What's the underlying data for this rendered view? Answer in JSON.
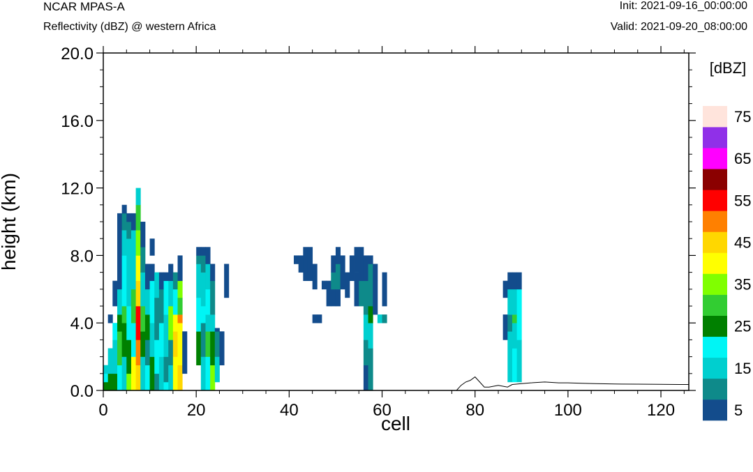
{
  "header": {
    "model": "NCAR MPAS-A",
    "title": "Reflectivity (dBZ) @ western Africa",
    "init": "Init: 2021-09-16_00:00:00",
    "valid": "Valid: 2021-09-20_08:00:00"
  },
  "chart_data": {
    "type": "heatmap",
    "title": "Reflectivity (dBZ) @ western Africa",
    "xlabel": "cell",
    "ylabel": "height (km)",
    "xlim": [
      0,
      126
    ],
    "ylim": [
      0,
      20
    ],
    "xticks": [
      "0",
      "20",
      "40",
      "60",
      "80",
      "100",
      "120"
    ],
    "yticks": [
      "0.0",
      "4.0",
      "8.0",
      "12.0",
      "16.0",
      "20.0"
    ],
    "cell_width": 1,
    "layer_height": 0.5,
    "colorbar": {
      "label": "[dBZ]",
      "levels": [
        0,
        10,
        15,
        20,
        25,
        30,
        35,
        40,
        45,
        50,
        55,
        60,
        65,
        70,
        75
      ],
      "tick_labels": [
        "5",
        "15",
        "25",
        "35",
        "45",
        "55",
        "65",
        "75"
      ],
      "colors": [
        "#134c8c",
        "#0e8a8a",
        "#00cfcf",
        "#00f5f5",
        "#008000",
        "#32cd32",
        "#80ff00",
        "#ffff00",
        "#ffd700",
        "#ff8000",
        "#ff0000",
        "#8b0000",
        "#ff00ff",
        "#9030e8",
        "#ffe4dc"
      ]
    },
    "columns": [
      {
        "x": 0,
        "runs": [
          [
            0,
            0.5,
            25
          ],
          [
            0.5,
            1.0,
            20
          ],
          [
            1.0,
            1.5,
            15
          ]
        ]
      },
      {
        "x": 1,
        "runs": [
          [
            0,
            1.0,
            25
          ],
          [
            1.0,
            2.5,
            15
          ],
          [
            4.0,
            4.5,
            5
          ]
        ]
      },
      {
        "x": 2,
        "runs": [
          [
            0,
            1.0,
            25
          ],
          [
            1.0,
            3.0,
            15
          ],
          [
            3.0,
            4.0,
            20
          ],
          [
            5.0,
            6.5,
            5
          ]
        ]
      },
      {
        "x": 3,
        "runs": [
          [
            0,
            1.5,
            20
          ],
          [
            1.5,
            3.5,
            30
          ],
          [
            3.5,
            4.5,
            25
          ],
          [
            4.5,
            6.0,
            15
          ],
          [
            6.0,
            10.5,
            5
          ]
        ]
      },
      {
        "x": 4,
        "runs": [
          [
            0,
            2.0,
            15
          ],
          [
            2.0,
            4.0,
            25
          ],
          [
            4.0,
            5.0,
            30
          ],
          [
            5.0,
            8.0,
            20
          ],
          [
            8.0,
            9.5,
            15
          ],
          [
            9.5,
            10.5,
            10
          ],
          [
            10.5,
            11.0,
            5
          ]
        ]
      },
      {
        "x": 5,
        "runs": [
          [
            0,
            1.0,
            35
          ],
          [
            1.0,
            3.0,
            25
          ],
          [
            3.0,
            5.0,
            20
          ],
          [
            5.0,
            9.0,
            15
          ],
          [
            9.0,
            10.0,
            10
          ],
          [
            10.0,
            10.5,
            5
          ]
        ]
      },
      {
        "x": 6,
        "runs": [
          [
            0,
            2.0,
            40
          ],
          [
            2.0,
            4.0,
            20
          ],
          [
            4.0,
            6.0,
            30
          ],
          [
            6.0,
            9.5,
            15
          ],
          [
            9.5,
            10.5,
            5
          ]
        ]
      },
      {
        "x": 7,
        "runs": [
          [
            0,
            1.5,
            45
          ],
          [
            1.5,
            3.0,
            50
          ],
          [
            3.0,
            5.0,
            55
          ],
          [
            5.0,
            6.5,
            45
          ],
          [
            6.5,
            8.0,
            40
          ],
          [
            8.0,
            9.5,
            35
          ],
          [
            9.5,
            11.0,
            30
          ],
          [
            11.0,
            12.0,
            15
          ]
        ]
      },
      {
        "x": 8,
        "runs": [
          [
            0,
            2.0,
            15
          ],
          [
            2.0,
            3.5,
            25
          ],
          [
            3.5,
            5.0,
            30
          ],
          [
            5.0,
            7.0,
            15
          ],
          [
            7.0,
            8.5,
            10
          ],
          [
            8.5,
            10.0,
            5
          ]
        ]
      },
      {
        "x": 9,
        "runs": [
          [
            0,
            1.5,
            20
          ],
          [
            1.5,
            3.0,
            10
          ],
          [
            3.0,
            4.5,
            25
          ],
          [
            4.5,
            6.0,
            15
          ],
          [
            6.0,
            7.5,
            5
          ]
        ]
      },
      {
        "x": 10,
        "runs": [
          [
            0,
            2.0,
            25
          ],
          [
            2.0,
            4.0,
            15
          ],
          [
            4.0,
            6.5,
            20
          ],
          [
            6.5,
            7.5,
            5
          ],
          [
            8.0,
            9.0,
            5
          ]
        ]
      },
      {
        "x": 11,
        "runs": [
          [
            0,
            1.0,
            10
          ],
          [
            1.0,
            3.0,
            20
          ],
          [
            3.0,
            5.5,
            10
          ],
          [
            5.5,
            7.0,
            15
          ]
        ]
      },
      {
        "x": 12,
        "runs": [
          [
            0,
            2.0,
            15
          ],
          [
            2.0,
            4.0,
            20
          ],
          [
            4.0,
            6.0,
            10
          ],
          [
            6.0,
            7.0,
            5
          ]
        ]
      },
      {
        "x": 13,
        "runs": [
          [
            0,
            0.5,
            20
          ],
          [
            0.5,
            2.0,
            10
          ],
          [
            2.0,
            4.5,
            15
          ],
          [
            4.5,
            6.5,
            20
          ],
          [
            6.5,
            7.0,
            5
          ]
        ]
      },
      {
        "x": 14,
        "runs": [
          [
            0,
            1.5,
            15
          ],
          [
            1.5,
            3.0,
            10
          ],
          [
            3.0,
            5.0,
            35
          ],
          [
            5.0,
            6.5,
            15
          ],
          [
            6.5,
            7.5,
            5
          ]
        ]
      },
      {
        "x": 15,
        "runs": [
          [
            0,
            2.0,
            40
          ],
          [
            2.0,
            3.5,
            45
          ],
          [
            3.5,
            4.5,
            40
          ],
          [
            4.5,
            6.0,
            20
          ],
          [
            6.0,
            7.0,
            10
          ]
        ]
      },
      {
        "x": 16,
        "runs": [
          [
            0,
            1.5,
            45
          ],
          [
            1.5,
            4.0,
            40
          ],
          [
            4.0,
            4.5,
            50
          ],
          [
            4.5,
            5.5,
            30
          ],
          [
            5.5,
            6.5,
            35
          ],
          [
            6.5,
            8.0,
            5
          ]
        ]
      },
      {
        "x": 17,
        "runs": [
          [
            1.0,
            3.5,
            5
          ]
        ]
      },
      {
        "x": 20,
        "runs": [
          [
            1.5,
            3.5,
            25
          ],
          [
            3.5,
            5.5,
            20
          ],
          [
            5.5,
            7.5,
            15
          ],
          [
            7.5,
            8.0,
            10
          ],
          [
            8.0,
            8.5,
            5
          ]
        ]
      },
      {
        "x": 21,
        "runs": [
          [
            0,
            2.0,
            15
          ],
          [
            2.0,
            4.0,
            10
          ],
          [
            4.0,
            5.0,
            20
          ],
          [
            5.0,
            7.0,
            15
          ],
          [
            7.0,
            8.0,
            10
          ],
          [
            8.0,
            8.5,
            5
          ]
        ]
      },
      {
        "x": 22,
        "runs": [
          [
            0,
            2.0,
            20
          ],
          [
            2.0,
            3.5,
            30
          ],
          [
            3.5,
            4.5,
            15
          ],
          [
            4.5,
            6.0,
            20
          ],
          [
            6.0,
            7.5,
            15
          ],
          [
            7.5,
            8.5,
            5
          ]
        ]
      },
      {
        "x": 23,
        "runs": [
          [
            0,
            1.5,
            35
          ],
          [
            1.5,
            3.5,
            25
          ],
          [
            3.5,
            4.5,
            15
          ],
          [
            4.5,
            6.5,
            10
          ],
          [
            6.5,
            7.5,
            5
          ]
        ]
      },
      {
        "x": 24,
        "runs": [
          [
            0.5,
            2.0,
            15
          ],
          [
            2.0,
            3.5,
            10
          ],
          [
            3.5,
            3.7,
            5
          ]
        ]
      },
      {
        "x": 25,
        "runs": [
          [
            1.5,
            3.5,
            5
          ]
        ]
      },
      {
        "x": 26,
        "runs": [
          [
            5.5,
            7.5,
            5
          ]
        ]
      },
      {
        "x": 41,
        "runs": [
          [
            7.5,
            8.0,
            5
          ]
        ]
      },
      {
        "x": 42,
        "runs": [
          [
            7.0,
            8.0,
            5
          ]
        ]
      },
      {
        "x": 43,
        "runs": [
          [
            6.5,
            8.5,
            5
          ]
        ]
      },
      {
        "x": 44,
        "runs": [
          [
            6.5,
            8.5,
            5
          ]
        ]
      },
      {
        "x": 45,
        "runs": [
          [
            4.0,
            4.5,
            5
          ],
          [
            6.0,
            7.5,
            5
          ]
        ]
      },
      {
        "x": 46,
        "runs": [
          [
            4.0,
            4.5,
            5
          ]
        ]
      },
      {
        "x": 47,
        "runs": [
          [
            6.0,
            6.5,
            5
          ]
        ]
      },
      {
        "x": 48,
        "runs": [
          [
            5.0,
            6.5,
            5
          ]
        ]
      },
      {
        "x": 49,
        "runs": [
          [
            5.0,
            6.0,
            5
          ],
          [
            6.0,
            7.0,
            10
          ],
          [
            7.0,
            8.0,
            5
          ]
        ]
      },
      {
        "x": 50,
        "runs": [
          [
            5.0,
            6.0,
            5
          ],
          [
            6.0,
            7.5,
            10
          ],
          [
            7.5,
            8.5,
            5
          ]
        ]
      },
      {
        "x": 51,
        "runs": [
          [
            6.0,
            8.0,
            5
          ]
        ]
      },
      {
        "x": 52,
        "runs": [
          [
            5.5,
            7.0,
            5
          ]
        ]
      },
      {
        "x": 53,
        "runs": [
          [
            6.5,
            8.0,
            5
          ]
        ]
      },
      {
        "x": 54,
        "runs": [
          [
            5.0,
            7.0,
            5
          ],
          [
            7.0,
            8.5,
            5
          ]
        ]
      },
      {
        "x": 55,
        "runs": [
          [
            5.0,
            6.5,
            10
          ],
          [
            6.5,
            7.5,
            5
          ],
          [
            7.5,
            8.5,
            5
          ]
        ]
      },
      {
        "x": 56,
        "runs": [
          [
            0,
            1.5,
            5
          ],
          [
            1.5,
            3.0,
            10
          ],
          [
            3.0,
            4.5,
            15
          ],
          [
            4.5,
            6.5,
            10
          ],
          [
            6.5,
            8.0,
            5
          ]
        ]
      },
      {
        "x": 57,
        "runs": [
          [
            0,
            2.5,
            10
          ],
          [
            2.5,
            4.0,
            15
          ],
          [
            4.0,
            5.0,
            25
          ],
          [
            5.0,
            7.5,
            10
          ],
          [
            7.5,
            8.0,
            5
          ]
        ]
      },
      {
        "x": 58,
        "runs": [
          [
            4.5,
            6.5,
            5
          ],
          [
            6.5,
            7.5,
            5
          ]
        ]
      },
      {
        "x": 59,
        "runs": [
          [
            4.0,
            4.5,
            15
          ]
        ]
      },
      {
        "x": 60,
        "runs": [
          [
            4.0,
            4.5,
            10
          ],
          [
            5.0,
            7.0,
            5
          ]
        ]
      },
      {
        "x": 86,
        "runs": [
          [
            3.0,
            4.5,
            5
          ],
          [
            5.5,
            6.5,
            5
          ]
        ]
      },
      {
        "x": 87,
        "runs": [
          [
            0.5,
            3.5,
            15
          ],
          [
            3.5,
            4.5,
            10
          ],
          [
            4.5,
            6.0,
            15
          ],
          [
            6.0,
            7.0,
            5
          ]
        ]
      },
      {
        "x": 88,
        "runs": [
          [
            0.5,
            2.5,
            20
          ],
          [
            2.5,
            4.0,
            15
          ],
          [
            4.0,
            4.5,
            30
          ],
          [
            4.5,
            6.0,
            15
          ],
          [
            6.0,
            7.0,
            5
          ]
        ]
      },
      {
        "x": 89,
        "runs": [
          [
            0.5,
            3.0,
            15
          ],
          [
            3.0,
            6.0,
            20
          ],
          [
            6.0,
            7.0,
            5
          ]
        ]
      }
    ],
    "terrain": [
      [
        0,
        0
      ],
      [
        76,
        0
      ],
      [
        77,
        0.3
      ],
      [
        78,
        0.5
      ],
      [
        79,
        0.6
      ],
      [
        80,
        0.8
      ],
      [
        81,
        0.5
      ],
      [
        82,
        0.2
      ],
      [
        83,
        0.2
      ],
      [
        84,
        0.25
      ],
      [
        85,
        0.3
      ],
      [
        86,
        0.25
      ],
      [
        87,
        0.2
      ],
      [
        88,
        0.35
      ],
      [
        90,
        0.4
      ],
      [
        92,
        0.45
      ],
      [
        95,
        0.5
      ],
      [
        98,
        0.45
      ],
      [
        100,
        0.45
      ],
      [
        103,
        0.42
      ],
      [
        106,
        0.4
      ],
      [
        110,
        0.38
      ],
      [
        115,
        0.37
      ],
      [
        120,
        0.36
      ],
      [
        124,
        0.35
      ],
      [
        126,
        0.35
      ]
    ]
  }
}
